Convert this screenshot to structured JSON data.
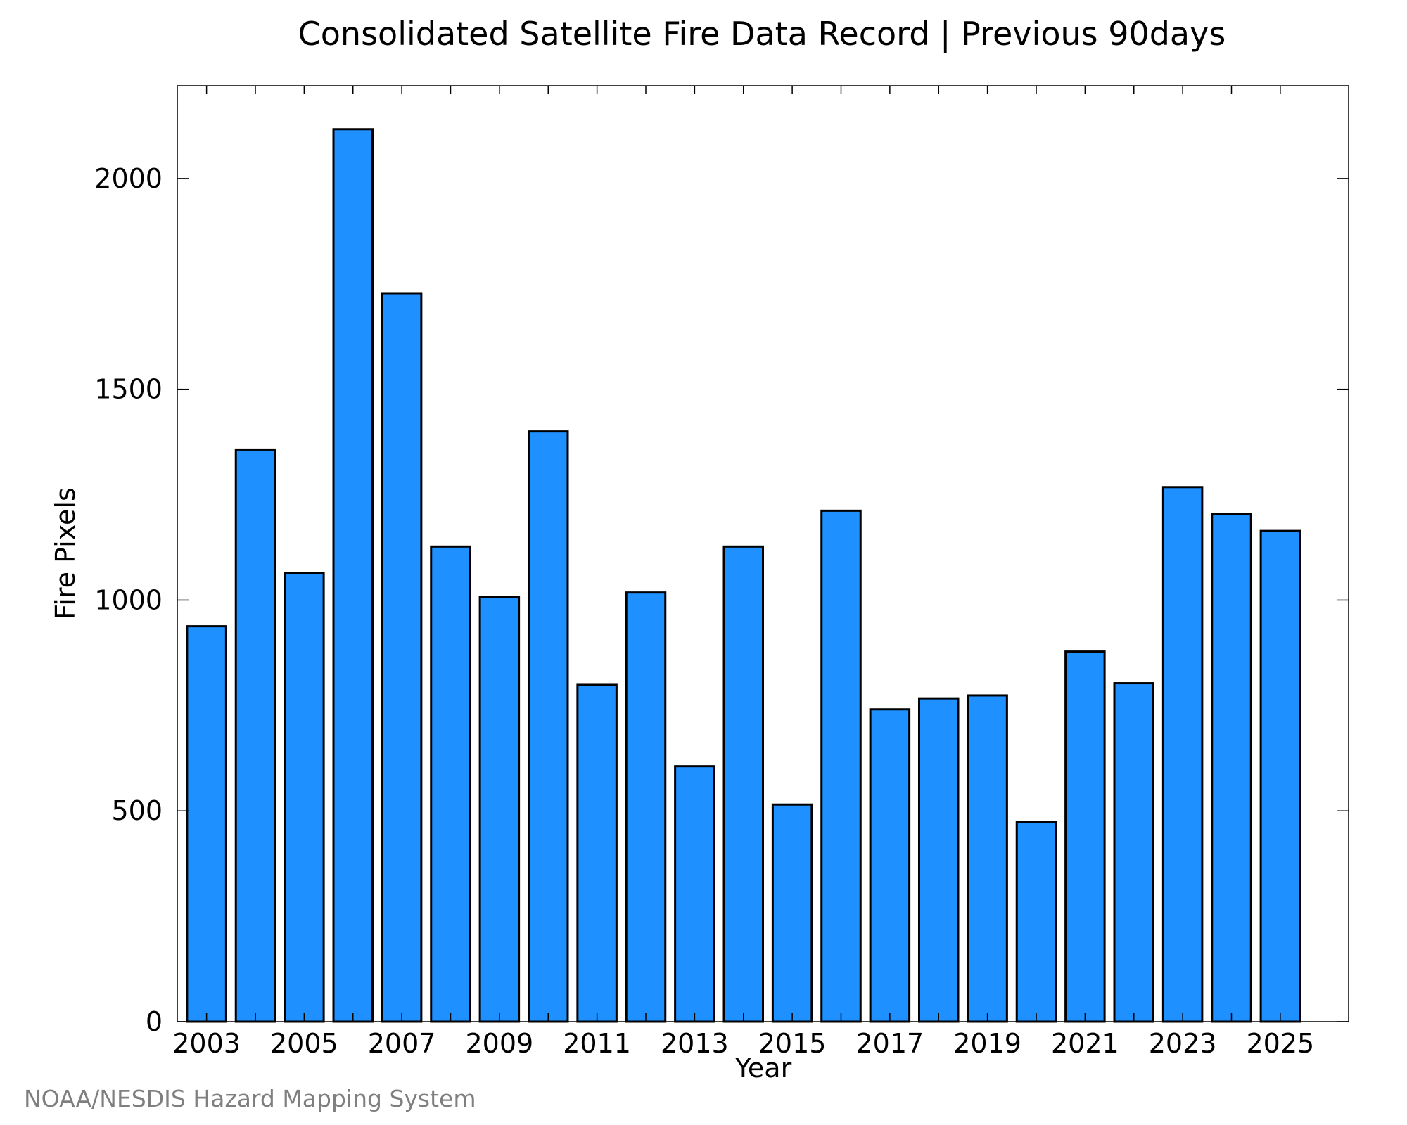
{
  "chart_data": {
    "type": "bar",
    "title": "Consolidated Satellite Fire Data Record | Previous 90days",
    "xlabel": "Year",
    "ylabel": "Fire Pixels",
    "credit": "NOAA/NESDIS Hazard Mapping System",
    "categories": [
      2003,
      2004,
      2005,
      2006,
      2007,
      2008,
      2009,
      2010,
      2011,
      2012,
      2013,
      2014,
      2015,
      2016,
      2017,
      2018,
      2019,
      2020,
      2021,
      2022,
      2023,
      2024,
      2025
    ],
    "values": [
      938,
      1357,
      1064,
      2117,
      1728,
      1127,
      1007,
      1400,
      799,
      1018,
      606,
      1127,
      515,
      1212,
      741,
      767,
      774,
      474,
      878,
      803,
      1268,
      1205,
      1164
    ],
    "xlim": [
      2002.4,
      2026.4
    ],
    "ylim": [
      0,
      2220
    ],
    "xticks": [
      2003,
      2005,
      2007,
      2009,
      2011,
      2013,
      2015,
      2017,
      2019,
      2021,
      2023,
      2025
    ],
    "yticks": [
      0,
      500,
      1000,
      1500,
      2000
    ],
    "bar_color": "#1e90ff",
    "bar_edge_color": "#000000",
    "grid": false
  }
}
